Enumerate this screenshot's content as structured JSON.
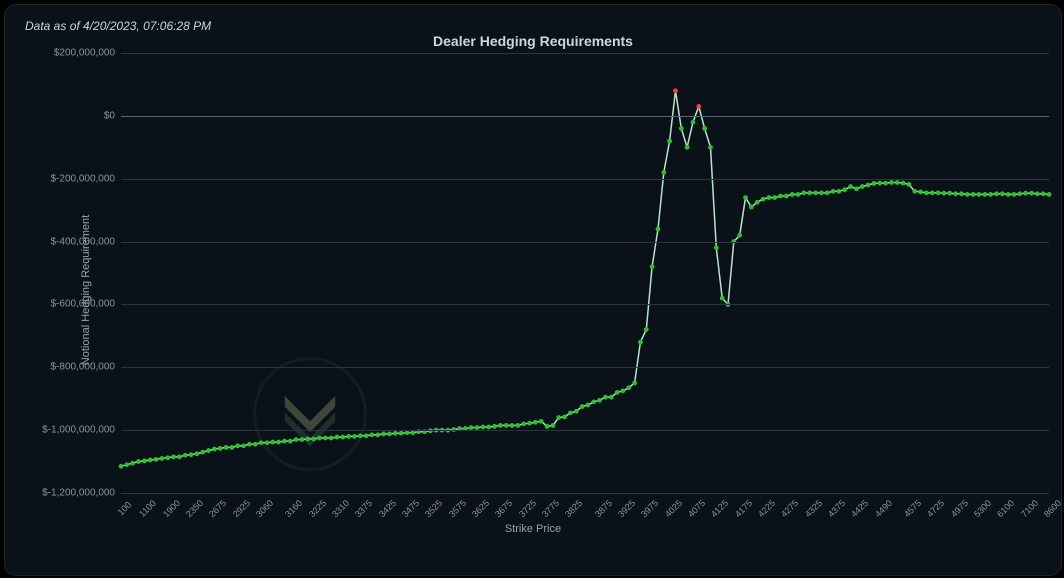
{
  "meta": {
    "timestamp": "Data as of 4/20/2023, 07:06:28 PM",
    "title": "Dealer Hedging Requirements",
    "xlabel": "Strike Price",
    "ylabel": "Notional Hedging Requirement"
  },
  "chart": {
    "type": "line",
    "background_color": "#0b1118",
    "grid_color": "#2a3540",
    "zero_line_color": "#5a6570",
    "axis_label_color": "#9aa3ab",
    "tick_label_color": "#8b949c",
    "title_color": "#cfd6dd",
    "line_color": "#b9e3cf",
    "line_width": 1.5,
    "marker_shape": "circle",
    "marker_radius": 2.4,
    "marker_color_neg": "#2fbf2f",
    "marker_color_pos": "#e84545",
    "y": {
      "min": -1200000000,
      "max": 200000000,
      "ticks": [
        200000000,
        0,
        -200000000,
        -400000000,
        -600000000,
        -800000000,
        -1000000000,
        -1200000000
      ],
      "tick_labels": [
        "$200,000,000",
        "$0",
        "$-200,000,000",
        "$-400,000,000",
        "$-600,000,000",
        "$-800,000,000",
        "$-1,000,000,000",
        "$-1,200,000,000"
      ]
    },
    "x": {
      "categories": [
        "100",
        "1100",
        "1900",
        "2350",
        "2675",
        "2925",
        "3060",
        "3160",
        "3225",
        "3310",
        "3375",
        "3425",
        "3475",
        "3525",
        "3575",
        "3625",
        "3675",
        "3725",
        "3775",
        "3825",
        "3875",
        "3925",
        "3975",
        "4025",
        "4075",
        "4125",
        "4175",
        "4225",
        "4275",
        "4325",
        "4375",
        "4425",
        "4490",
        "4575",
        "4725",
        "4975",
        "5300",
        "6100",
        "7100",
        "8600"
      ]
    },
    "series": [
      {
        "values": [
          -1115,
          -1110,
          -1105,
          -1100,
          -1098,
          -1095,
          -1093,
          -1090,
          -1088,
          -1085,
          -1085,
          -1080,
          -1078,
          -1075,
          -1070,
          -1065,
          -1060,
          -1058,
          -1055,
          -1055,
          -1050,
          -1050,
          -1045,
          -1045,
          -1040,
          -1040,
          -1038,
          -1038,
          -1035,
          -1035,
          -1030,
          -1030,
          -1028,
          -1028,
          -1025,
          -1025,
          -1025,
          -1022,
          -1022,
          -1020,
          -1020,
          -1018,
          -1018,
          -1015,
          -1015,
          -1012,
          -1012,
          -1010,
          -1010,
          -1008,
          -1008,
          -1005,
          -1005,
          -1002,
          -1000,
          -1000,
          -1000,
          -998,
          -995,
          -995,
          -992,
          -992,
          -990,
          -990,
          -988,
          -985,
          -985,
          -985,
          -985,
          -980,
          -978,
          -975,
          -972,
          -988,
          -985,
          -960,
          -958,
          -945,
          -940,
          -925,
          -920,
          -910,
          -905,
          -895,
          -895,
          -880,
          -875,
          -865,
          -850,
          -720,
          -680,
          -480,
          -360,
          -180,
          -80,
          80,
          -40,
          -100,
          -20,
          30,
          -40,
          -100,
          -420,
          -580,
          -600,
          -400,
          -380,
          -260,
          -290,
          -275,
          -265,
          -260,
          -260,
          -255,
          -255,
          -250,
          -250,
          -245,
          -245,
          -245,
          -245,
          -245,
          -240,
          -240,
          -235,
          -225,
          -232,
          -225,
          -220,
          -215,
          -214,
          -214,
          -212,
          -212,
          -214,
          -218,
          -240,
          -242,
          -245,
          -245,
          -245,
          -246,
          -246,
          -248,
          -248,
          -250,
          -250,
          -250,
          -250,
          -250,
          -248,
          -248,
          -250,
          -250,
          -248,
          -246,
          -246,
          -248,
          -248,
          -250
        ],
        "scale": 1000000
      }
    ]
  },
  "watermark": {
    "outer_color": "#1a2a25",
    "chevron_color_top": "#6b735a",
    "chevron_color_bottom": "#2f4a3a"
  }
}
